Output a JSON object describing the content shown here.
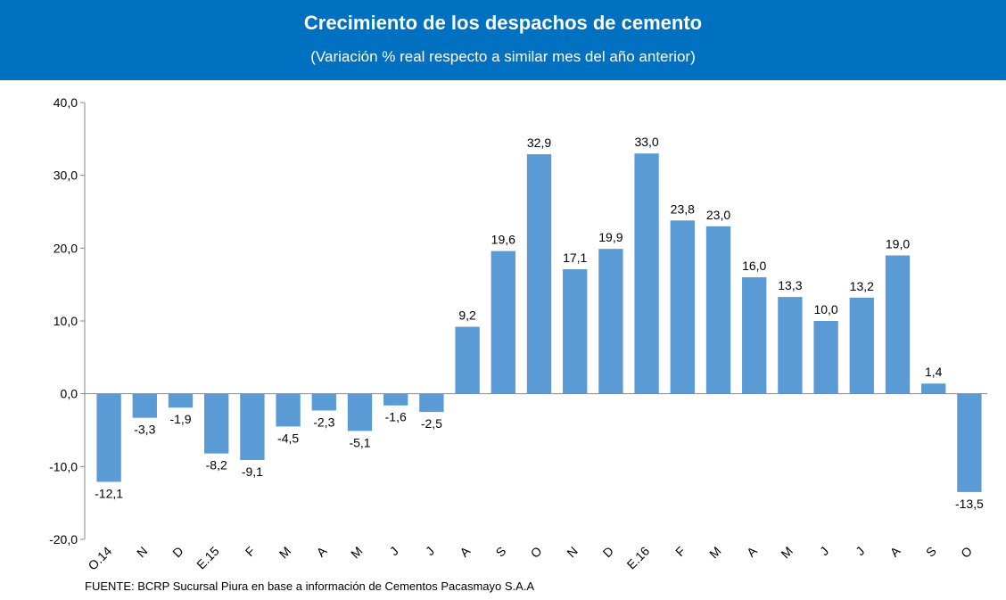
{
  "chart_data": {
    "type": "bar",
    "title": "Crecimiento de los despachos de cemento",
    "subtitle": "(Variación % real respecto a similar mes del año anterior)",
    "source": "FUENTE:  BCRP Sucursal Piura en base a información de Cementos Pacasmayo S.A.A",
    "categories": [
      "O.14",
      "N",
      "D",
      "E.15",
      "F",
      "M",
      "A",
      "M",
      "J",
      "J",
      "A",
      "S",
      "O",
      "N",
      "D",
      "E.16",
      "F",
      "M",
      "A",
      "M",
      "J",
      "J",
      "A",
      "S",
      "O"
    ],
    "values": [
      -12.1,
      -3.3,
      -1.9,
      -8.2,
      -9.1,
      -4.5,
      -2.3,
      -5.1,
      -1.6,
      -2.5,
      9.2,
      19.6,
      32.9,
      17.1,
      19.9,
      33.0,
      23.8,
      23.0,
      16.0,
      13.3,
      10.0,
      13.2,
      19.0,
      1.4,
      -13.5
    ],
    "value_labels": [
      "-12,1",
      "-3,3",
      "-1,9",
      "-8,2",
      "-9,1",
      "-4,5",
      "-2,3",
      "-5,1",
      "-1,6",
      "-2,5",
      "9,2",
      "19,6",
      "32,9",
      "17,1",
      "19,9",
      "33,0",
      "23,8",
      "23,0",
      "16,0",
      "13,3",
      "10,0",
      "13,2",
      "19,0",
      "1,4",
      "-13,5"
    ],
    "color": "#5b9bd5",
    "header_color": "#0070c0",
    "ylim": [
      -20,
      40
    ],
    "yticks": [
      {
        "value": -20,
        "label": "-20,0"
      },
      {
        "value": -10,
        "label": "-10,0"
      },
      {
        "value": 0,
        "label": "0,0"
      },
      {
        "value": 10,
        "label": "10,0"
      },
      {
        "value": 20,
        "label": "20,0"
      },
      {
        "value": 30,
        "label": "30,0"
      },
      {
        "value": 40,
        "label": "40,0"
      }
    ]
  }
}
